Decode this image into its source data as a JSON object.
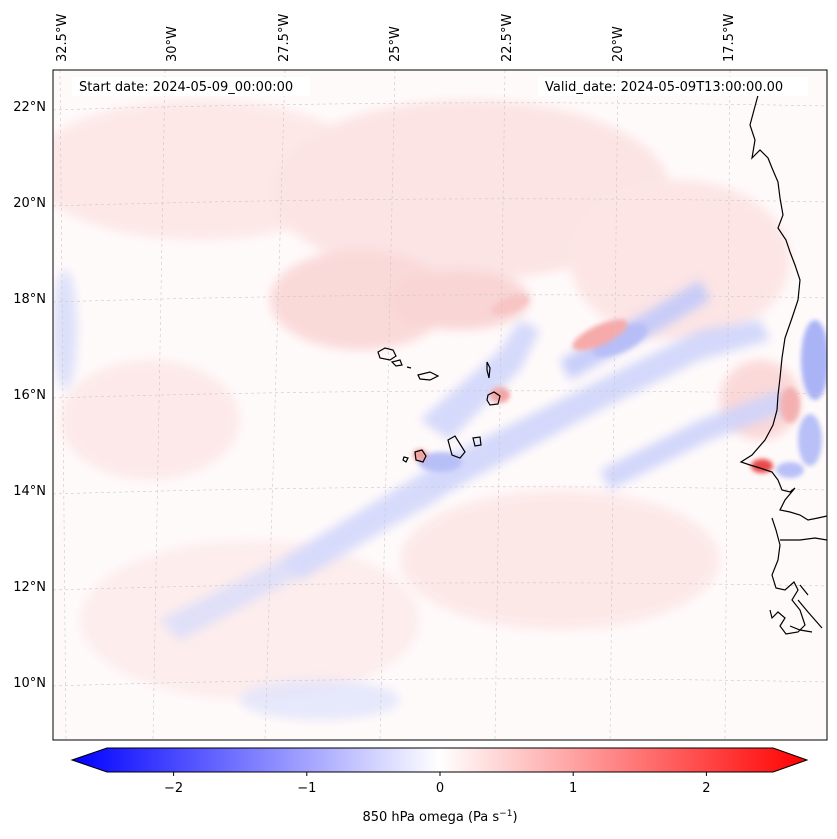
{
  "map": {
    "header": {
      "start_date": "Start date: 2024-05-09_00:00:00",
      "valid_date": "Valid_date: 2024-05-09T13:00:00.00"
    },
    "lon_labels": [
      "32.5°W",
      "30°W",
      "27.5°W",
      "25°W",
      "22.5°W",
      "20°W",
      "17.5°W"
    ],
    "lat_labels": [
      "22°N",
      "20°N",
      "18°N",
      "16°N",
      "14°N",
      "12°N",
      "10°N"
    ]
  },
  "colorbar": {
    "ticks": [
      "−2",
      "−1",
      "0",
      "1",
      "2"
    ],
    "tick_values": [
      -2,
      -1,
      0,
      1,
      2
    ],
    "min": -2.5,
    "max": 2.5,
    "label": "850 hPa omega (Pa s",
    "label_exp": "−1",
    "label_close": ")",
    "color_low": "#0000ff",
    "color_mid": "#ffffff",
    "color_high": "#ff0000"
  }
}
